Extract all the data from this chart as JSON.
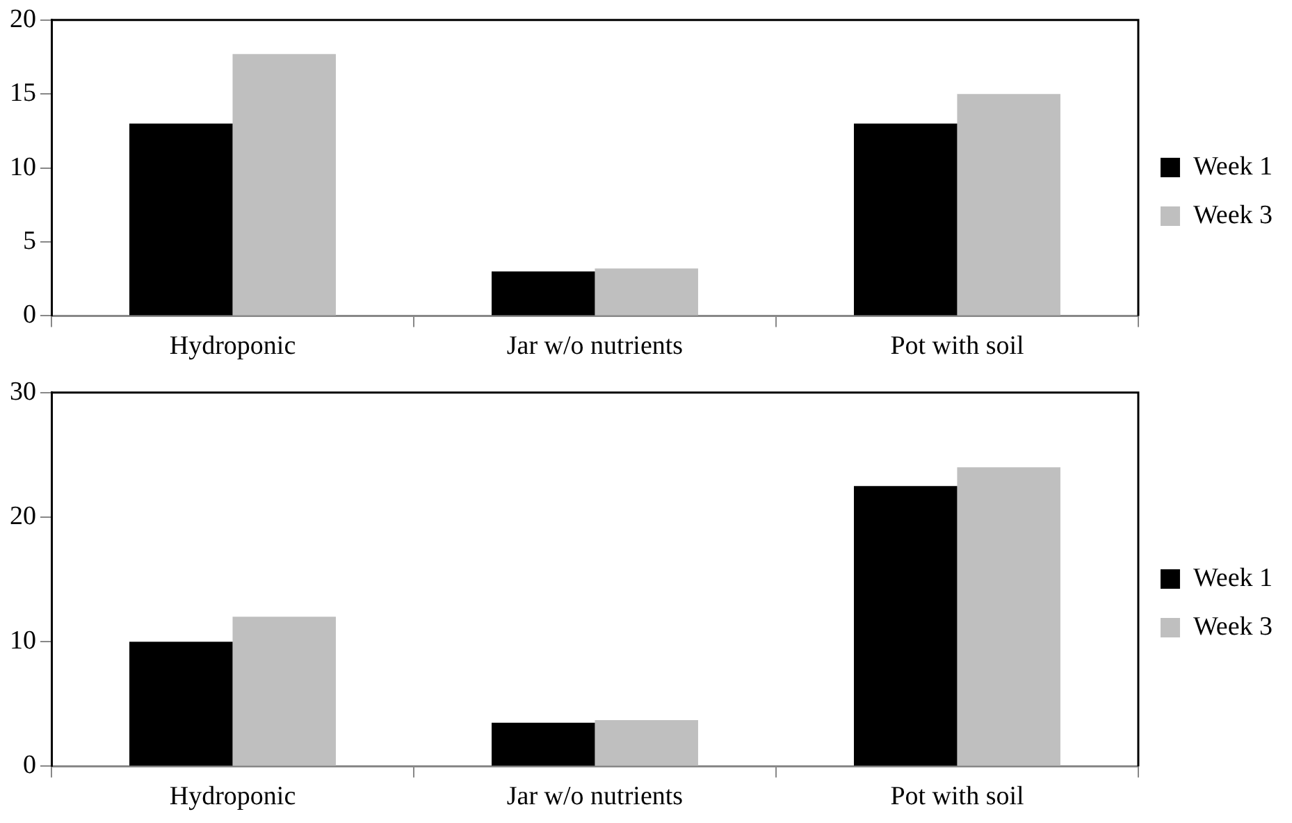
{
  "chart_data": [
    {
      "type": "bar",
      "categories": [
        "Hydroponic",
        "Jar w/o nutrients",
        "Pot with soil"
      ],
      "series": [
        {
          "name": "Week 1",
          "color": "#000000",
          "values": [
            13,
            3,
            13
          ]
        },
        {
          "name": "Week 3",
          "color": "#bfbfbf",
          "values": [
            17.7,
            3.2,
            15
          ]
        }
      ],
      "ylim": [
        0,
        20
      ],
      "yticks": [
        0,
        5,
        10,
        15,
        20
      ],
      "grid": false,
      "legend": "right"
    },
    {
      "type": "bar",
      "categories": [
        "Hydroponic",
        "Jar w/o nutrients",
        "Pot with soil"
      ],
      "series": [
        {
          "name": "Week 1",
          "color": "#000000",
          "values": [
            10,
            3.5,
            22.5
          ]
        },
        {
          "name": "Week 3",
          "color": "#bfbfbf",
          "values": [
            12,
            3.7,
            24
          ]
        }
      ],
      "ylim": [
        0,
        30
      ],
      "yticks": [
        0,
        10,
        20,
        30
      ],
      "grid": false,
      "legend": "right"
    }
  ]
}
